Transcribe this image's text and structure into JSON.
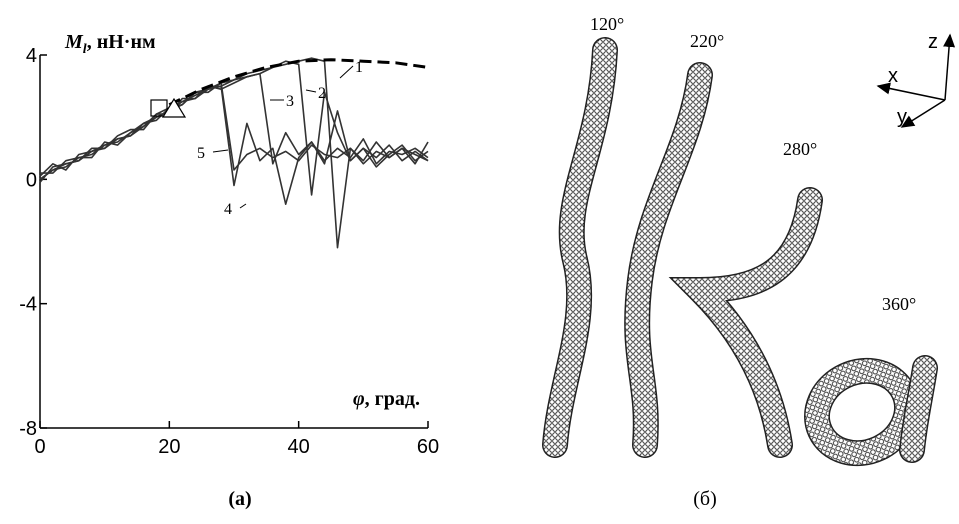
{
  "chart_data": {
    "type": "line",
    "y_label": {
      "symbol": "M",
      "subscript": "l",
      "unit": ", нН·нм"
    },
    "x_label": {
      "symbol": "φ",
      "unit": ", град."
    },
    "x": [
      0,
      2,
      4,
      6,
      8,
      10,
      12,
      14,
      16,
      18,
      20,
      22,
      24,
      26,
      28,
      30,
      32,
      34,
      36,
      38,
      40,
      42,
      44,
      46,
      48,
      50,
      52,
      54,
      56,
      58,
      60
    ],
    "series": [
      {
        "name": "1",
        "color": "#333333",
        "values": [
          0,
          0.3,
          0.4,
          0.7,
          0.8,
          1.1,
          1.2,
          1.5,
          1.7,
          2.0,
          2.2,
          2.5,
          2.7,
          2.9,
          3.0,
          3.2,
          3.3,
          3.4,
          3.6,
          3.7,
          3.8,
          3.9,
          3.8,
          -2.2,
          1.0,
          0.6,
          1.2,
          0.7,
          1.0,
          0.5,
          1.2
        ]
      },
      {
        "name": "2",
        "color": "#333333",
        "values": [
          0.1,
          0.5,
          0.3,
          0.8,
          0.9,
          1.0,
          1.3,
          1.4,
          1.8,
          1.9,
          2.3,
          2.4,
          2.8,
          2.8,
          3.1,
          3.2,
          3.4,
          3.5,
          3.6,
          3.8,
          3.7,
          -0.5,
          2.8,
          1.5,
          0.6,
          1.0,
          0.7,
          1.1,
          0.6,
          0.9,
          0.6
        ]
      },
      {
        "name": "3",
        "color": "#333333",
        "values": [
          -0.1,
          0.4,
          0.5,
          0.6,
          1.0,
          1.0,
          1.4,
          1.6,
          1.6,
          2.1,
          2.1,
          2.6,
          2.6,
          3.0,
          2.9,
          3.1,
          3.3,
          3.4,
          0.5,
          1.5,
          0.8,
          1.2,
          0.6,
          1.0,
          0.7,
          1.3,
          0.5,
          0.9,
          0.8,
          1.0,
          0.7
        ]
      },
      {
        "name": "4",
        "color": "#333333",
        "values": [
          0.2,
          0.2,
          0.6,
          0.7,
          0.7,
          1.2,
          1.1,
          1.5,
          1.8,
          2.0,
          2.2,
          2.4,
          2.8,
          2.9,
          3.0,
          -0.2,
          1.8,
          0.6,
          1.0,
          -0.8,
          0.7,
          1.2,
          0.5,
          2.2,
          0.6,
          1.0,
          0.4,
          0.8,
          1.1,
          0.6,
          0.9
        ]
      },
      {
        "name": "5",
        "color": "#333333",
        "values": [
          0,
          0.3,
          0.5,
          0.6,
          0.9,
          1.1,
          1.3,
          1.4,
          1.7,
          2.1,
          2.3,
          2.5,
          2.6,
          2.9,
          3.1,
          0.3,
          0.8,
          1.0,
          0.7,
          0.9,
          0.6,
          1.1,
          0.8,
          0.7,
          1.0,
          0.5,
          0.9,
          0.7,
          1.0,
          0.8,
          0.6
        ]
      },
      {
        "name": null,
        "color": "#000000",
        "style": "dashed",
        "x": [
          20,
          25,
          30,
          35,
          40,
          45,
          50,
          55,
          60
        ],
        "values": [
          2.4,
          2.9,
          3.3,
          3.6,
          3.8,
          3.85,
          3.8,
          3.75,
          3.6
        ]
      }
    ],
    "xlim": [
      0,
      60
    ],
    "ylim": [
      -8,
      4
    ],
    "xticks": [
      0,
      20,
      40,
      60
    ],
    "yticks": [
      -8,
      -4,
      0,
      4
    ],
    "caption": "(а)"
  },
  "panel_b": {
    "caption": "(б)",
    "angles": [
      "120°",
      "220°",
      "280°",
      "360°"
    ],
    "axes": [
      "x",
      "y",
      "z"
    ]
  }
}
